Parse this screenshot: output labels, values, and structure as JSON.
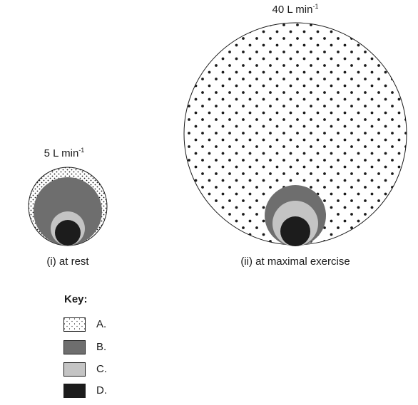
{
  "rest": {
    "flow_value": "5 L min",
    "flow_exponent": "-1",
    "caption": "(i) at rest"
  },
  "exercise": {
    "flow_value": "40 L min",
    "flow_exponent": "-1",
    "caption": "(ii) at maximal exercise"
  },
  "key": {
    "title": "Key:",
    "items": [
      {
        "label": "A.",
        "fill": "dots"
      },
      {
        "label": "B.",
        "fill": "#6e6e6e"
      },
      {
        "label": "C.",
        "fill": "#c4c4c4"
      },
      {
        "label": "D.",
        "fill": "#1c1c1c"
      }
    ]
  },
  "colors": {
    "stroke": "#1a1a1a",
    "b": "#6e6e6e",
    "c": "#c4c4c4",
    "d": "#1c1c1c",
    "background": "#ffffff"
  }
}
